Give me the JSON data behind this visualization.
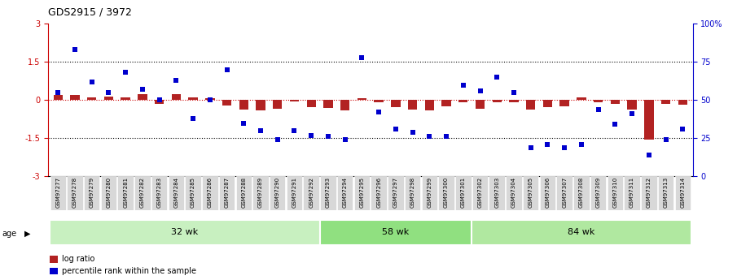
{
  "title": "GDS2915 / 3972",
  "samples": [
    "GSM97277",
    "GSM97278",
    "GSM97279",
    "GSM97280",
    "GSM97281",
    "GSM97282",
    "GSM97283",
    "GSM97284",
    "GSM97285",
    "GSM97286",
    "GSM97287",
    "GSM97288",
    "GSM97289",
    "GSM97290",
    "GSM97291",
    "GSM97292",
    "GSM97293",
    "GSM97294",
    "GSM97295",
    "GSM97296",
    "GSM97297",
    "GSM97298",
    "GSM97299",
    "GSM97300",
    "GSM97301",
    "GSM97302",
    "GSM97303",
    "GSM97304",
    "GSM97305",
    "GSM97306",
    "GSM97307",
    "GSM97308",
    "GSM97309",
    "GSM97310",
    "GSM97311",
    "GSM97312",
    "GSM97313",
    "GSM97314"
  ],
  "log_ratio": [
    0.2,
    0.2,
    0.1,
    0.15,
    0.1,
    0.25,
    -0.15,
    0.25,
    0.1,
    0.08,
    -0.22,
    -0.38,
    -0.42,
    -0.35,
    -0.05,
    -0.28,
    -0.3,
    -0.42,
    0.07,
    -0.1,
    -0.28,
    -0.38,
    -0.4,
    -0.25,
    -0.08,
    -0.35,
    -0.08,
    -0.1,
    -0.38,
    -0.28,
    -0.25,
    0.1,
    -0.08,
    -0.15,
    -0.38,
    -1.55,
    -0.15,
    -0.18
  ],
  "percentile": [
    55,
    83,
    62,
    55,
    68,
    57,
    50,
    63,
    38,
    50,
    70,
    35,
    30,
    24,
    30,
    27,
    26,
    24,
    78,
    42,
    31,
    29,
    26,
    26,
    60,
    56,
    65,
    55,
    19,
    21,
    19,
    21,
    44,
    34,
    41,
    14,
    24,
    31
  ],
  "groups": [
    {
      "label": "32 wk",
      "start": 0,
      "end": 16,
      "color": "#c8f0c0"
    },
    {
      "label": "58 wk",
      "start": 16,
      "end": 25,
      "color": "#90e080"
    },
    {
      "label": "84 wk",
      "start": 25,
      "end": 38,
      "color": "#b0e8a0"
    }
  ],
  "ylim": [
    -3,
    3
  ],
  "bar_color": "#b22222",
  "dot_color": "#0000cd",
  "hline_color": "#cc0000",
  "dotline_color": "black",
  "axis_color_left": "#cc0000",
  "axis_color_right": "#0000cc",
  "bg_color": "#ffffff",
  "plot_bg": "#ffffff",
  "tick_label_bg": "#d8d8d8"
}
